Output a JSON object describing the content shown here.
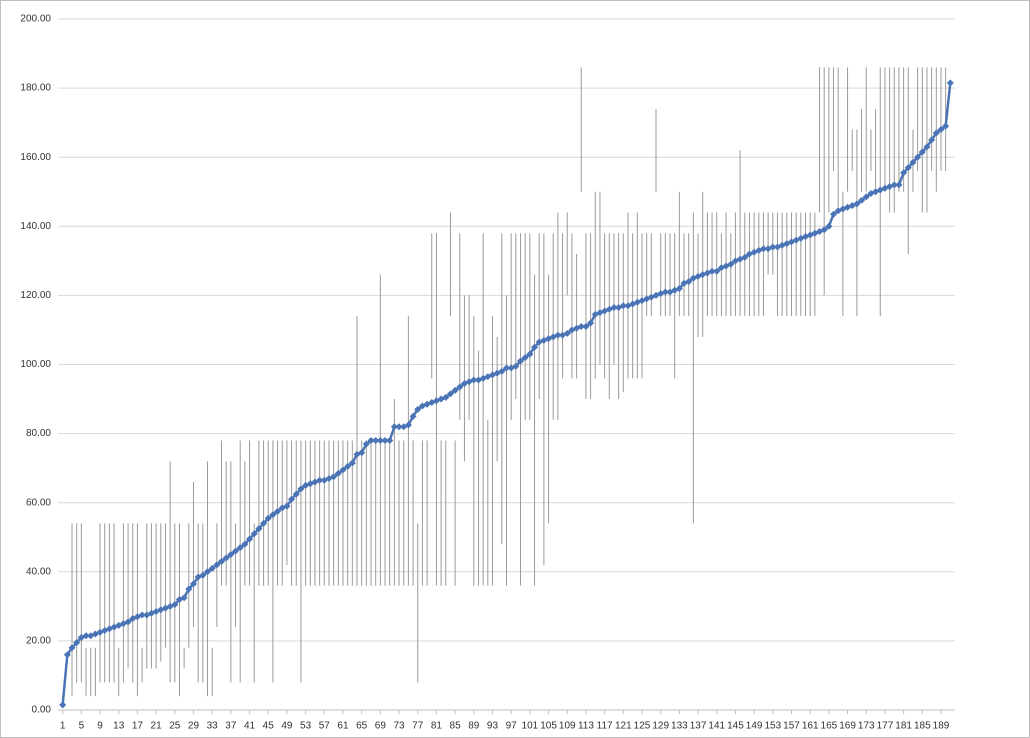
{
  "chart_data": {
    "type": "line",
    "x": [
      1,
      2,
      3,
      4,
      5,
      6,
      7,
      8,
      9,
      10,
      11,
      12,
      13,
      14,
      15,
      16,
      17,
      18,
      19,
      20,
      21,
      22,
      23,
      24,
      25,
      26,
      27,
      28,
      29,
      30,
      31,
      32,
      33,
      34,
      35,
      36,
      37,
      38,
      39,
      40,
      41,
      42,
      43,
      44,
      45,
      46,
      47,
      48,
      49,
      50,
      51,
      52,
      53,
      54,
      55,
      56,
      57,
      58,
      59,
      60,
      61,
      62,
      63,
      64,
      65,
      66,
      67,
      68,
      69,
      70,
      71,
      72,
      73,
      74,
      75,
      76,
      77,
      78,
      79,
      80,
      81,
      82,
      83,
      84,
      85,
      86,
      87,
      88,
      89,
      90,
      91,
      92,
      93,
      94,
      95,
      96,
      97,
      98,
      99,
      100,
      101,
      102,
      103,
      104,
      105,
      106,
      107,
      108,
      109,
      110,
      111,
      112,
      113,
      114,
      115,
      116,
      117,
      118,
      119,
      120,
      121,
      122,
      123,
      124,
      125,
      126,
      127,
      128,
      129,
      130,
      131,
      132,
      133,
      134,
      135,
      136,
      137,
      138,
      139,
      140,
      141,
      142,
      143,
      144,
      145,
      146,
      147,
      148,
      149,
      150,
      151,
      152,
      153,
      154,
      155,
      156,
      157,
      158,
      159,
      160,
      161,
      162,
      163,
      164,
      165,
      166,
      167,
      168,
      169,
      170,
      171,
      172,
      173,
      174,
      175,
      176,
      177,
      178,
      179,
      180,
      181,
      182,
      183,
      184,
      185,
      186,
      187,
      188,
      189,
      190,
      191
    ],
    "xlim": [
      0,
      192
    ],
    "xticks": [
      1,
      5,
      9,
      13,
      17,
      21,
      25,
      29,
      33,
      37,
      41,
      45,
      49,
      53,
      57,
      61,
      65,
      69,
      73,
      77,
      81,
      85,
      89,
      93,
      97,
      101,
      105,
      109,
      113,
      117,
      121,
      125,
      129,
      133,
      137,
      141,
      145,
      149,
      153,
      157,
      161,
      165,
      169,
      173,
      177,
      181,
      185,
      189
    ],
    "ylim": [
      0,
      200
    ],
    "yticks": [
      {
        "value": 0,
        "label": "0.00"
      },
      {
        "value": 20,
        "label": "20.00"
      },
      {
        "value": 40,
        "label": "40.00"
      },
      {
        "value": 60,
        "label": "60.00"
      },
      {
        "value": 80,
        "label": "80.00"
      },
      {
        "value": 100,
        "label": "100.00"
      },
      {
        "value": 120,
        "label": "120.00"
      },
      {
        "value": 140,
        "label": "140.00"
      },
      {
        "value": 160,
        "label": "160.00"
      },
      {
        "value": 180,
        "label": "180.00"
      },
      {
        "value": 200,
        "label": "200.00"
      }
    ],
    "grid": true,
    "series": [
      {
        "color": "#4a74b5",
        "error_color": "#9a9a9a",
        "values": [
          1.5,
          16,
          18,
          19.5,
          21,
          21.5,
          21.5,
          22,
          22.5,
          23,
          23.5,
          24,
          24.5,
          25,
          25.5,
          26.5,
          27,
          27.5,
          27.5,
          28,
          28.5,
          29,
          29.5,
          30,
          30.5,
          32,
          32.5,
          35,
          36.5,
          38.5,
          39,
          40,
          41,
          42,
          43,
          44,
          45,
          46,
          47,
          48,
          49.5,
          51,
          52.5,
          54,
          55.5,
          56.5,
          57.5,
          58.5,
          59,
          61,
          62.5,
          64,
          65,
          65.5,
          66,
          66.5,
          66.5,
          67,
          67.5,
          68.5,
          69.5,
          70.5,
          71.5,
          74,
          74.5,
          77,
          78,
          78,
          78,
          78,
          78,
          82,
          82,
          82,
          82.5,
          85,
          87,
          88,
          88.5,
          89,
          89.5,
          90,
          90.5,
          91.5,
          92.5,
          93.5,
          94.5,
          95,
          95.5,
          95.5,
          96,
          96.5,
          97,
          97.5,
          98,
          99,
          99,
          99.5,
          101,
          102,
          103,
          105,
          106.5,
          107,
          107.5,
          108,
          108.5,
          108.5,
          109,
          110,
          110.5,
          111,
          111,
          112,
          114.5,
          115,
          115.5,
          116,
          116.5,
          116.5,
          117,
          117,
          117.5,
          118,
          118.5,
          119,
          119.5,
          120,
          120.5,
          121,
          121,
          121.5,
          122,
          123.5,
          124,
          125,
          125.5,
          126,
          126.5,
          127,
          127,
          128,
          128.5,
          129,
          130,
          130.5,
          131,
          132,
          132.5,
          133,
          133.5,
          133.5,
          134,
          134,
          134.5,
          135,
          135.5,
          136,
          136.5,
          137,
          137.5,
          138,
          138.5,
          139,
          140,
          143.5,
          144.5,
          145,
          145.5,
          146,
          146.5,
          147.5,
          148.5,
          149.5,
          150,
          150.5,
          151,
          151.5,
          152,
          152,
          155.5,
          157,
          158.5,
          160,
          161.5,
          163,
          165,
          167,
          168,
          169,
          181.5
        ],
        "high": [
          null,
          null,
          54,
          54,
          54,
          18,
          18,
          18,
          54,
          54,
          54,
          54,
          18,
          54,
          54,
          54,
          54,
          18,
          54,
          54,
          54,
          54,
          54,
          72,
          54,
          54,
          18,
          54,
          66,
          54,
          54,
          72,
          18,
          54,
          78,
          72,
          72,
          54,
          78,
          72,
          78,
          54,
          78,
          78,
          78,
          78,
          78,
          78,
          78,
          78,
          78,
          78,
          78,
          78,
          78,
          78,
          78,
          78,
          78,
          78,
          78,
          78,
          78,
          114,
          78,
          78,
          78,
          78,
          126,
          78,
          78,
          90,
          78,
          78,
          114,
          78,
          54,
          78,
          78,
          138,
          138,
          78,
          78,
          144,
          78,
          138,
          120,
          120,
          114,
          104,
          138,
          84,
          114,
          108,
          138,
          120,
          138,
          138,
          138,
          138,
          138,
          126,
          138,
          138,
          126,
          138,
          144,
          138,
          144,
          138,
          132,
          186,
          138,
          138,
          150,
          150,
          138,
          138,
          138,
          138,
          138,
          144,
          138,
          144,
          138,
          138,
          138,
          174,
          138,
          138,
          138,
          138,
          150,
          138,
          138,
          144,
          138,
          150,
          144,
          144,
          144,
          138,
          144,
          138,
          144,
          162,
          144,
          144,
          144,
          144,
          144,
          144,
          144,
          144,
          144,
          144,
          144,
          144,
          144,
          144,
          144,
          144,
          186,
          186,
          186,
          186,
          186,
          150,
          186,
          168,
          168,
          174,
          186,
          168,
          174,
          186,
          186,
          186,
          186,
          186,
          186,
          186,
          168,
          186,
          186,
          186,
          186,
          186,
          186,
          186,
          null
        ],
        "low": [
          null,
          null,
          4,
          8,
          8,
          4,
          4,
          4,
          8,
          8,
          8,
          8,
          4,
          8,
          12,
          8,
          4,
          8,
          12,
          12,
          12,
          14,
          18,
          8,
          8,
          4,
          12,
          18,
          24,
          8,
          8,
          4,
          4,
          24,
          36,
          36,
          8,
          24,
          8,
          36,
          36,
          8,
          36,
          36,
          36,
          8,
          36,
          36,
          42,
          36,
          36,
          8,
          36,
          36,
          36,
          36,
          36,
          36,
          36,
          36,
          36,
          36,
          36,
          36,
          36,
          36,
          36,
          36,
          36,
          36,
          36,
          36,
          36,
          36,
          36,
          36,
          8,
          36,
          36,
          96,
          36,
          36,
          36,
          114,
          36,
          84,
          72,
          84,
          36,
          36,
          36,
          36,
          36,
          72,
          48,
          36,
          84,
          90,
          36,
          84,
          84,
          36,
          90,
          42,
          54,
          84,
          84,
          96,
          120,
          96,
          96,
          150,
          90,
          90,
          96,
          100,
          96,
          90,
          100,
          90,
          92,
          96,
          96,
          96,
          96,
          114,
          114,
          150,
          114,
          114,
          114,
          96,
          114,
          114,
          114,
          54,
          108,
          108,
          114,
          114,
          114,
          114,
          114,
          114,
          114,
          114,
          114,
          114,
          114,
          114,
          114,
          126,
          126,
          114,
          114,
          114,
          114,
          114,
          114,
          114,
          114,
          114,
          144,
          120,
          144,
          156,
          144,
          114,
          150,
          156,
          114,
          150,
          150,
          156,
          150,
          114,
          150,
          144,
          144,
          150,
          150,
          132,
          150,
          156,
          144,
          144,
          156,
          150,
          156,
          156,
          null
        ]
      }
    ]
  }
}
